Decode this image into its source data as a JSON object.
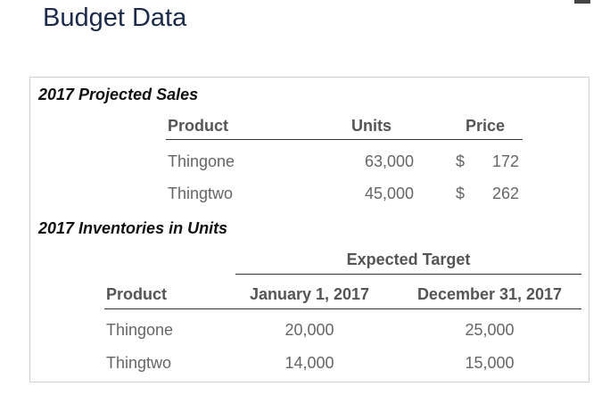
{
  "page": {
    "title": "Budget Data"
  },
  "sales": {
    "title": "2017 Projected Sales",
    "headers": {
      "product": "Product",
      "units": "Units",
      "price": "Price"
    },
    "rows": [
      {
        "product": "Thingone",
        "units": "63,000",
        "currency": "$",
        "price": "172"
      },
      {
        "product": "Thingtwo",
        "units": "45,000",
        "currency": "$",
        "price": "262"
      }
    ]
  },
  "inventories": {
    "title": "2017 Inventories in Units",
    "group_header": "Expected Target",
    "headers": {
      "product": "Product",
      "jan": "January 1, 2017",
      "dec": "December 31, 2017"
    },
    "rows": [
      {
        "product": "Thingone",
        "jan": "20,000",
        "dec": "25,000"
      },
      {
        "product": "Thingtwo",
        "jan": "14,000",
        "dec": "15,000"
      }
    ]
  }
}
